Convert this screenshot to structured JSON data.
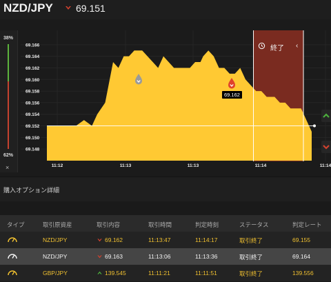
{
  "header": {
    "pair": "NZD/JPY",
    "price": "69.151",
    "direction": "down",
    "arrow_color": "#d0412e"
  },
  "ratio": {
    "top": "38%",
    "bottom": "62%",
    "close": "×"
  },
  "chart": {
    "end_label": "終了",
    "end_chevron": "‹",
    "price_tag": "69.162",
    "pin_icons": [
      "gray-drop-pin-icon",
      "red-drop-pin-icon"
    ]
  },
  "chart_data": {
    "type": "area",
    "y_ticks": [
      "69.166",
      "69.164",
      "69.162",
      "69.160",
      "69.158",
      "69.156",
      "69.154",
      "69.152",
      "69.150",
      "69.148"
    ],
    "x_ticks": [
      "11:12",
      "11:13",
      "11:13",
      "11:14",
      "11:14"
    ],
    "ylim": [
      69.146,
      69.168
    ],
    "xlim": [
      0,
      100
    ],
    "series": [
      {
        "x": [
          0,
          4,
          9,
          11,
          14,
          17,
          19,
          22,
          25,
          27,
          29,
          31,
          33,
          36,
          38,
          40,
          42,
          44,
          46,
          48,
          50,
          52,
          54,
          56,
          58,
          59,
          61,
          63,
          65,
          67,
          69,
          71,
          73,
          75,
          77,
          79,
          81,
          83,
          84,
          86,
          88,
          90,
          92,
          94,
          96,
          98,
          100
        ],
        "y": [
          69.152,
          69.152,
          69.152,
          69.152,
          69.153,
          69.152,
          69.154,
          69.156,
          69.163,
          69.162,
          69.164,
          69.164,
          69.165,
          69.165,
          69.164,
          69.163,
          69.162,
          69.164,
          69.163,
          69.162,
          69.162,
          69.162,
          69.162,
          69.163,
          69.163,
          69.164,
          69.165,
          69.164,
          69.162,
          69.162,
          69.161,
          69.161,
          69.162,
          69.16,
          69.159,
          69.158,
          69.158,
          69.157,
          69.157,
          69.157,
          69.156,
          69.156,
          69.155,
          69.155,
          69.155,
          69.153,
          69.151
        ]
      }
    ],
    "threshold": 69.152,
    "end_region_start_x": 78,
    "grid": true,
    "area_color": "#ffc933",
    "end_region_color": "#7a2b20"
  },
  "section": {
    "title": "購入オプション詳細"
  },
  "table": {
    "headers": [
      "タイプ",
      "取引原資産",
      "取引内容",
      "取引時間",
      "判定時刻",
      "ステータス",
      "判定レート"
    ],
    "rows": [
      {
        "type_icon": "gauge-icon",
        "asset": "NZD/JPY",
        "dir": "down",
        "rate": "69.162",
        "trade_time": "11:13:47",
        "judge_time": "11:14:17",
        "status": "取引終了",
        "judge_rate": "69.155"
      },
      {
        "type_icon": "gauge-icon",
        "asset": "NZD/JPY",
        "dir": "down",
        "rate": "69.163",
        "trade_time": "11:13:06",
        "judge_time": "11:13:36",
        "status": "取引終了",
        "judge_rate": "69.164"
      },
      {
        "type_icon": "gauge-icon",
        "asset": "GBP/JPY",
        "dir": "up",
        "rate": "139.545",
        "trade_time": "11:11:21",
        "judge_time": "11:11:51",
        "status": "取引終了",
        "judge_rate": "139.556"
      }
    ]
  },
  "colors": {
    "up": "#4caf3c",
    "down": "#d0412e",
    "accent": "#f0c030"
  }
}
